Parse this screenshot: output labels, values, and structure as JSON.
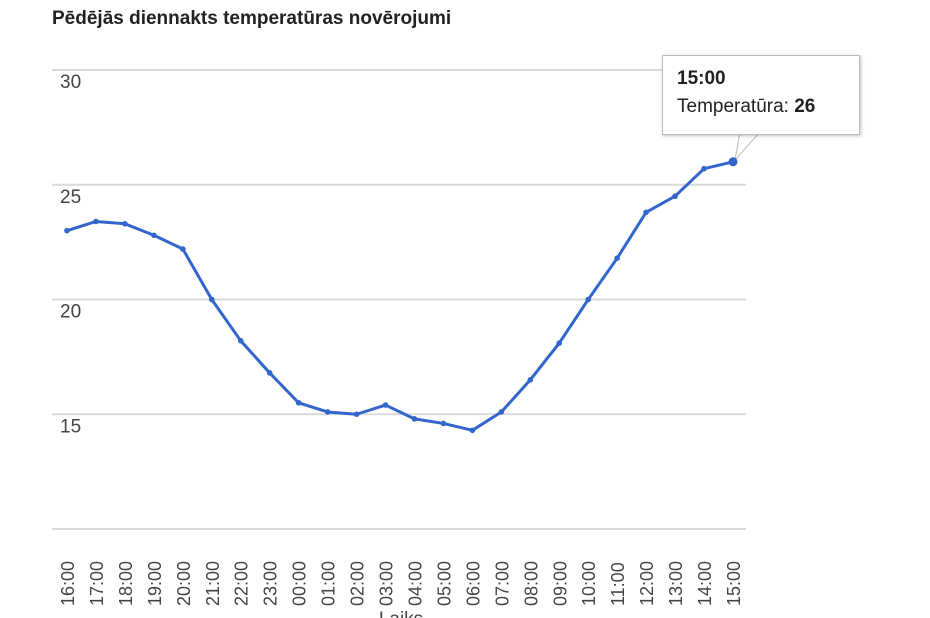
{
  "chart_data": {
    "type": "line",
    "title": "Pēdējās diennakts temperatūras novērojumi",
    "xlabel": "Laiks",
    "ylabel": "",
    "categories": [
      "16:00",
      "17:00",
      "18:00",
      "19:00",
      "20:00",
      "21:00",
      "22:00",
      "23:00",
      "00:00",
      "01:00",
      "02:00",
      "03:00",
      "04:00",
      "05:00",
      "06:00",
      "07:00",
      "08:00",
      "09:00",
      "10:00",
      "11:00",
      "12:00",
      "13:00",
      "14:00",
      "15:00"
    ],
    "series": [
      {
        "name": "Temperatūra",
        "values": [
          23.0,
          23.4,
          23.3,
          22.8,
          22.2,
          20.0,
          18.2,
          16.8,
          15.5,
          15.1,
          15.0,
          15.4,
          14.8,
          14.6,
          14.3,
          15.1,
          16.5,
          18.1,
          20.0,
          21.8,
          23.8,
          24.5,
          25.7,
          26.0
        ]
      }
    ],
    "ylim": [
      10,
      30
    ],
    "yticks": [
      15,
      20,
      25,
      30
    ],
    "grid": true,
    "legend": "none",
    "colors": {
      "line": "#3366cc",
      "grid": "#d9d9d9"
    }
  },
  "tooltip": {
    "time": "15:00",
    "label": "Temperatūra:",
    "value": "26"
  }
}
